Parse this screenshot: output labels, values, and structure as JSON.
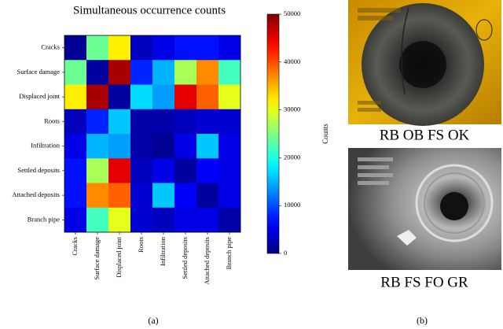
{
  "chart_data": {
    "type": "heatmap",
    "title": "Simultaneous occurrence counts",
    "categories": [
      "Cracks",
      "Surface damage",
      "Displaced joint",
      "Roots",
      "Infiltration",
      "Settled deposits",
      "Attached deposits",
      "Branch pipe"
    ],
    "rows": [
      "Cracks",
      "Surface damage",
      "Displaced joint",
      "Roots",
      "Infiltration",
      "Settled deposits",
      "Attached deposits",
      "Branch pipe"
    ],
    "values": [
      [
        1000,
        24000,
        32000,
        3000,
        5000,
        7000,
        7000,
        5000
      ],
      [
        24000,
        1500,
        48000,
        8000,
        15000,
        27000,
        37000,
        22000
      ],
      [
        32000,
        48000,
        1500,
        17000,
        14000,
        45000,
        39000,
        30000
      ],
      [
        3000,
        8000,
        16000,
        2000,
        2000,
        3000,
        4000,
        4000
      ],
      [
        5000,
        15000,
        14000,
        2000,
        1000,
        5000,
        16000,
        5000
      ],
      [
        7000,
        27000,
        45000,
        3000,
        5000,
        1500,
        6000,
        5000
      ],
      [
        7000,
        37000,
        39000,
        4000,
        16000,
        6000,
        1500,
        5000
      ],
      [
        5000,
        22000,
        30000,
        4000,
        3000,
        5000,
        5000,
        2000
      ]
    ],
    "colormap": "jet",
    "zlim": [
      0,
      50000
    ],
    "zticks": [
      0,
      10000,
      20000,
      30000,
      40000,
      50000
    ],
    "colorbar_label": "Counts"
  },
  "photos": [
    {
      "caption": "RB OB FS OK"
    },
    {
      "caption": "RB FS FO GR"
    }
  ],
  "subcaptions": [
    "(a)",
    "(b)"
  ]
}
